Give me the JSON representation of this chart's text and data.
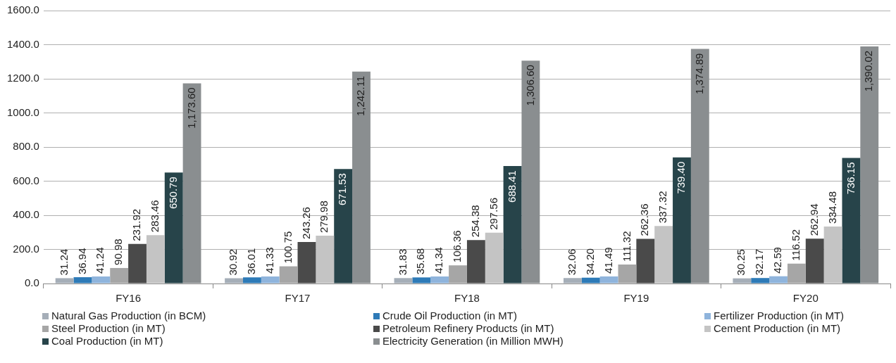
{
  "chart_data": {
    "type": "bar",
    "categories": [
      "FY16",
      "FY17",
      "FY18",
      "FY19",
      "FY20"
    ],
    "ylim": [
      0,
      1600
    ],
    "yticks": [
      {
        "value": 0,
        "label": "0.0"
      },
      {
        "value": 200,
        "label": "200.0"
      },
      {
        "value": 400,
        "label": "400.0"
      },
      {
        "value": 600,
        "label": "600.0"
      },
      {
        "value": 800,
        "label": "800.0"
      },
      {
        "value": 1000,
        "label": "1000.0"
      },
      {
        "value": 1200,
        "label": "1200.0"
      },
      {
        "value": 1400,
        "label": "1400.0"
      },
      {
        "value": 1600,
        "label": "1600.0"
      }
    ],
    "grid": "y",
    "legend": "bottom",
    "series": [
      {
        "name": "Natural Gas Production (in BCM)",
        "color": "#a5aeb8",
        "values": [
          31.24,
          30.92,
          31.83,
          32.06,
          30.25
        ],
        "value_labels": [
          "31.24",
          "30.92",
          "31.83",
          "32.06",
          "30.25"
        ]
      },
      {
        "name": "Crude Oil Production (in MT)",
        "color": "#2e7bb8",
        "values": [
          36.94,
          36.01,
          35.68,
          34.2,
          32.17
        ],
        "value_labels": [
          "36.94",
          "36.01",
          "35.68",
          "34.20",
          "32.17"
        ]
      },
      {
        "name": "Fertilizer Production (in MT)",
        "color": "#8fb4dc",
        "values": [
          41.24,
          41.33,
          41.34,
          41.49,
          42.59
        ],
        "value_labels": [
          "41.24",
          "41.33",
          "41.34",
          "41.49",
          "42.59"
        ]
      },
      {
        "name": "Steel Production (in MT)",
        "color": "#a6a6a6",
        "values": [
          90.98,
          100.75,
          106.36,
          111.32,
          116.52
        ],
        "value_labels": [
          "90.98",
          "100.75",
          "106.36",
          "111.32",
          "116.52"
        ]
      },
      {
        "name": "Petroleum Refinery Products (in MT)",
        "color": "#4a4a4a",
        "values": [
          231.92,
          243.26,
          254.38,
          262.36,
          262.94
        ],
        "value_labels": [
          "231.92",
          "243.26",
          "254.38",
          "262.36",
          "262.94"
        ]
      },
      {
        "name": "Cement Production (in MT)",
        "color": "#c4c4c4",
        "values": [
          283.46,
          279.98,
          297.56,
          337.32,
          334.48
        ],
        "value_labels": [
          "283.46",
          "279.98",
          "297.56",
          "337.32",
          "334.48"
        ]
      },
      {
        "name": "Coal Production (in MT)",
        "color": "#27444a",
        "values": [
          650.79,
          671.53,
          688.41,
          739.4,
          736.15
        ],
        "value_labels": [
          "650.79",
          "671.53",
          "688.41",
          "739.40",
          "736.15"
        ]
      },
      {
        "name": "Electricity Generation (in Million MWH)",
        "color": "#8a8e90",
        "values": [
          1173.6,
          1242.11,
          1306.6,
          1374.89,
          1390.02
        ],
        "value_labels": [
          "1,173.60",
          "1,242.11",
          "1,306.60",
          "1,374.89",
          "1,390.02"
        ]
      }
    ]
  }
}
